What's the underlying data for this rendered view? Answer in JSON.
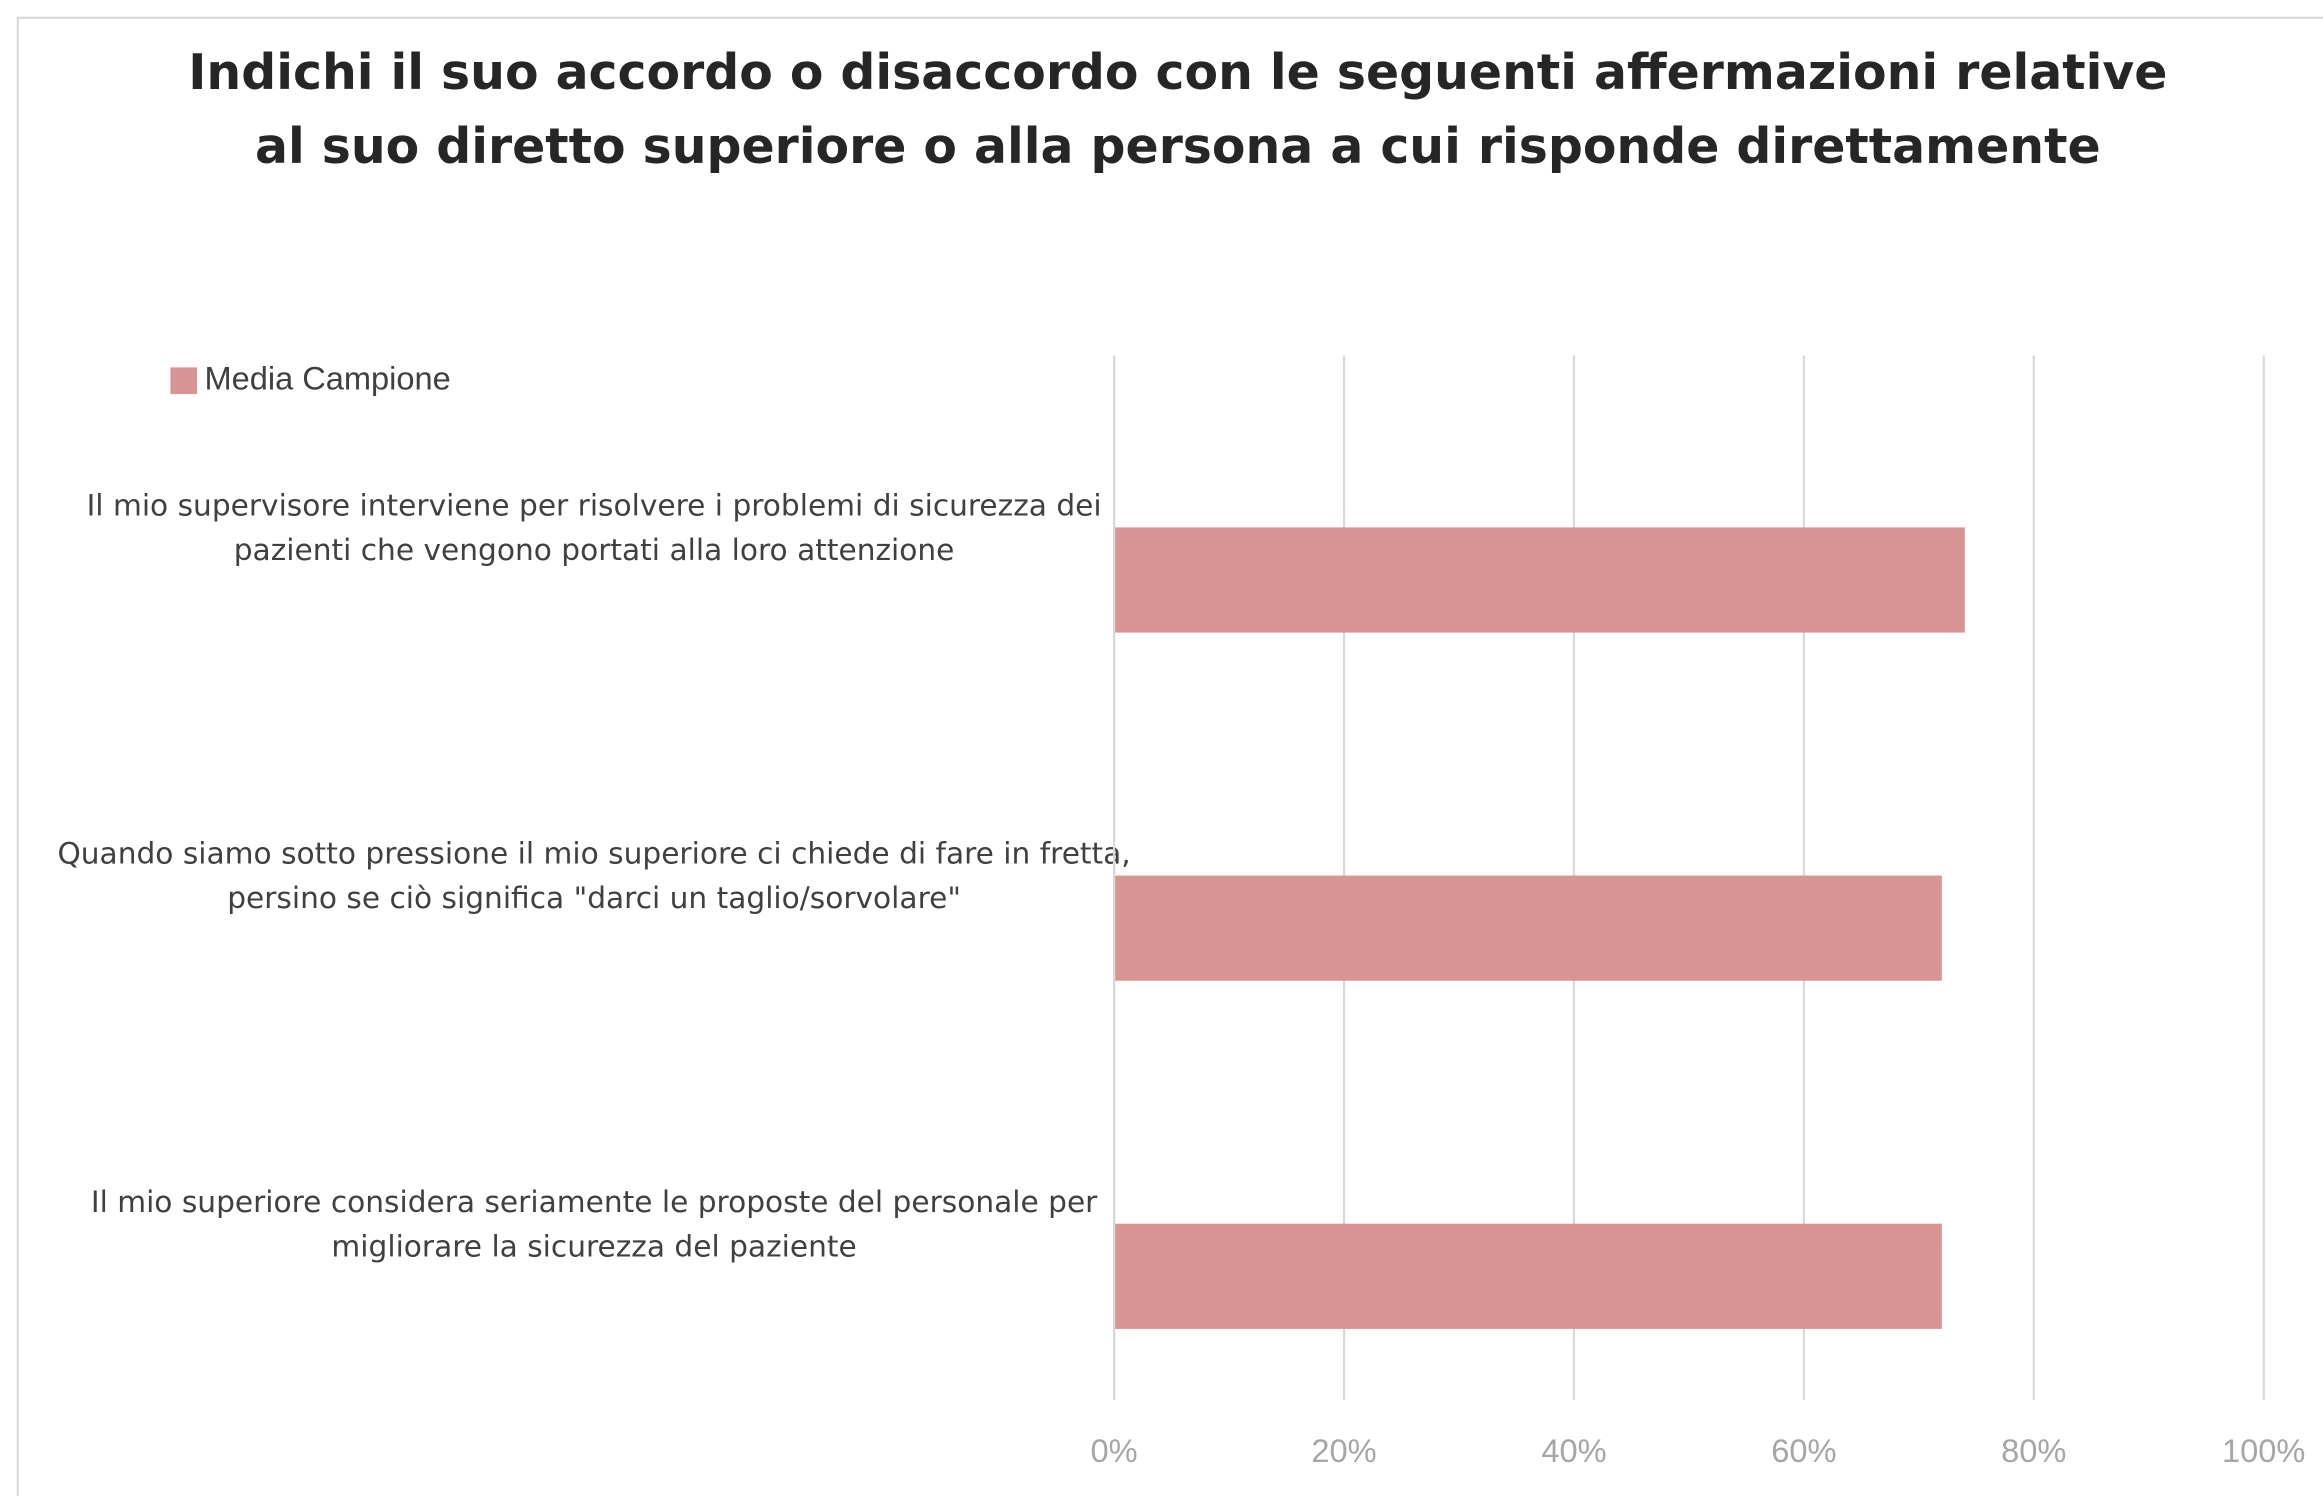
{
  "chart_data": {
    "type": "barh",
    "title": "Indichi il suo accordo o disaccordo con le seguenti affermazioni relative\nal suo diretto superiore o alla persona a cui risponde direttamente",
    "categories": [
      "Il mio supervisore interviene per risolvere i problemi di sicurezza dei\npazienti che vengono portati alla loro attenzione",
      "Quando siamo sotto pressione il mio superiore ci chiede di fare in fretta,\npersino se ciò significa \"darci un taglio/sorvolare\"",
      "Il mio superiore considera seriamente le proposte del personale per\nmigliorare la sicurezza del paziente"
    ],
    "series": [
      {
        "name": "Media Campione",
        "color": "#d99594",
        "values": [
          74,
          72,
          72
        ]
      }
    ],
    "xlim": [
      0,
      100
    ],
    "xticks": [
      {
        "value": 0,
        "label": "0%"
      },
      {
        "value": 20,
        "label": "20%"
      },
      {
        "value": 40,
        "label": "40%"
      },
      {
        "value": 60,
        "label": "60%"
      },
      {
        "value": 80,
        "label": "80%"
      },
      {
        "value": 100,
        "label": "100%"
      }
    ],
    "grid": true,
    "legend": "top-left"
  }
}
